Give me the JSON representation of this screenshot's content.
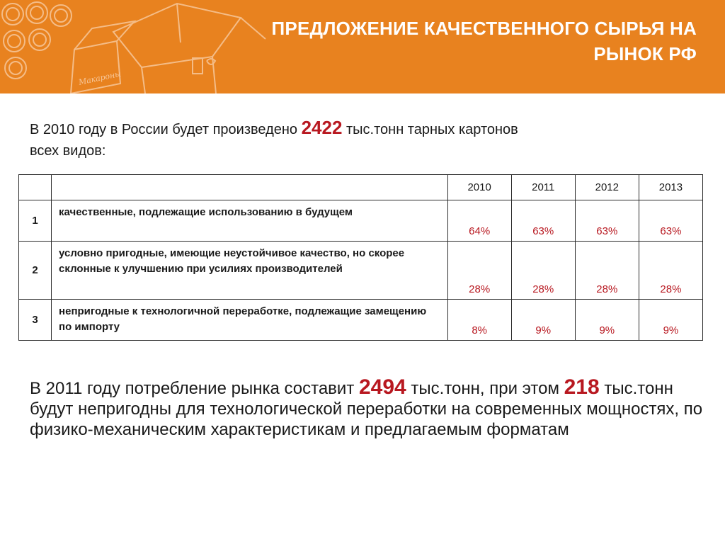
{
  "header": {
    "title_line1": "ПРЕДЛОЖЕНИЕ КАЧЕСТВЕННОГО СЫРЬЯ НА",
    "title_line2": "РЫНОК РФ",
    "accent_color": "#e8821f"
  },
  "intro": {
    "text_before": "В 2010 году в России будет произведено ",
    "highlight": "2422",
    "text_after_line1": " тыс.тонн тарных картонов",
    "text_line2": "всех видов:"
  },
  "table": {
    "years": [
      "2010",
      "2011",
      "2012",
      "2013"
    ],
    "rows": [
      {
        "number": "1",
        "description": "качественные, подлежащие использованию в будущем",
        "values": [
          "64%",
          "63%",
          "63%",
          "63%"
        ]
      },
      {
        "number": "2",
        "description": "условно пригодные, имеющие неустойчивое качество, но скорее склонные к улучшению при усилиях производителей",
        "values": [
          "28%",
          "28%",
          "28%",
          "28%"
        ]
      },
      {
        "number": "3",
        "description": "непригодные к технологичной переработке, подлежащие  замещению по импорту",
        "values": [
          "8%",
          "9%",
          "9%",
          "9%"
        ]
      }
    ]
  },
  "summary": {
    "part1": "В 2011 году потребление рынка составит ",
    "highlight1": "2494",
    "part2": " тыс.тонн, при этом ",
    "highlight2": "218",
    "part3": " тыс.тонн будут непригодны для технологической переработки на современных мощностях, по физико-механическим характеристикам и предлагаемым форматам"
  },
  "colors": {
    "highlight_red": "#b81820",
    "banner_orange": "#e8821f"
  }
}
